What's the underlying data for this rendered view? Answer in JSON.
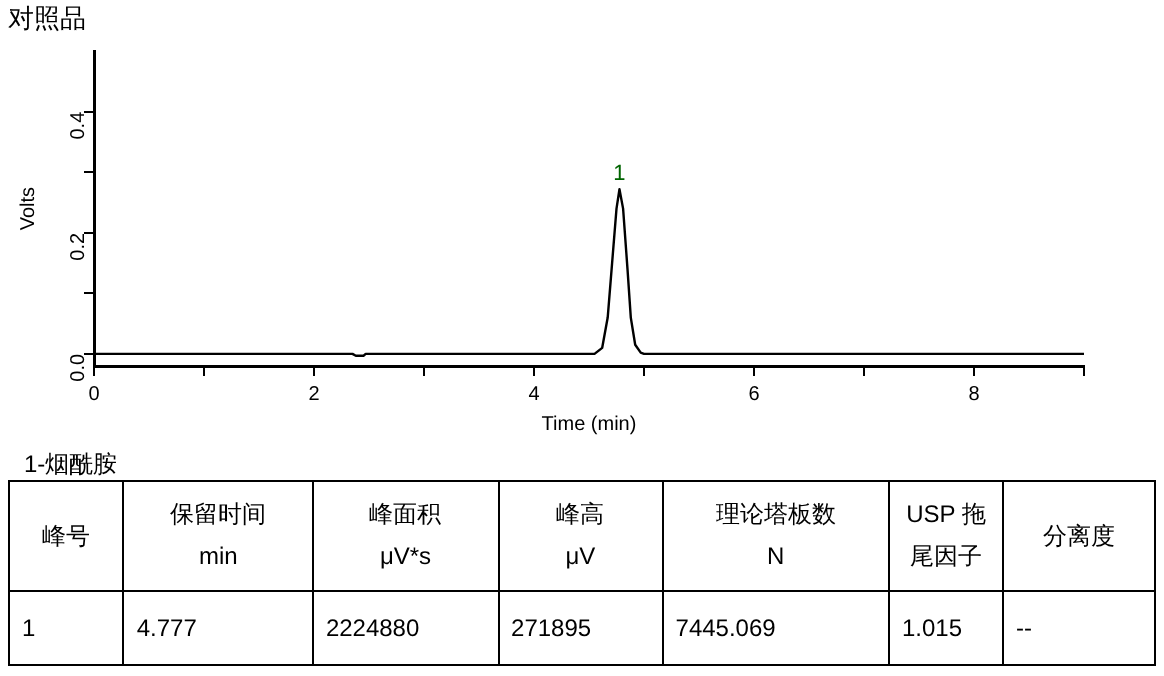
{
  "chart_data": {
    "type": "line",
    "title": "对照品",
    "xlabel": "Time (min)",
    "ylabel": "Volts",
    "x": [
      0,
      2.35,
      2.38,
      2.45,
      2.47,
      4.55,
      4.62,
      4.67,
      4.71,
      4.75,
      4.777,
      4.81,
      4.85,
      4.88,
      4.92,
      4.97,
      5.0,
      9
    ],
    "series": [
      {
        "color": "#000000",
        "values": [
          0,
          0,
          -0.003,
          -0.003,
          0,
          0,
          0.01,
          0.06,
          0.15,
          0.24,
          0.272,
          0.24,
          0.14,
          0.06,
          0.015,
          0.002,
          0,
          0
        ]
      }
    ],
    "xlim": [
      0,
      9
    ],
    "xticks": [
      0,
      {
        "value": 1,
        "label": null
      },
      2,
      {
        "value": 3,
        "label": null
      },
      4,
      {
        "value": 5,
        "label": null
      },
      6,
      {
        "value": 7,
        "label": null
      },
      8,
      {
        "value": 9,
        "label": null
      }
    ],
    "ylim": [
      -0.02,
      0.5
    ],
    "yticks": [
      {
        "value": 0,
        "label": "0.0"
      },
      {
        "value": 0.1,
        "label": null
      },
      {
        "value": 0.2,
        "label": "0.2"
      },
      {
        "value": 0.3,
        "label": null
      },
      {
        "value": 0.4,
        "label": "0.4"
      }
    ],
    "grid": false,
    "legend": false,
    "marker": "none",
    "line_style": "solid",
    "annotations": [
      {
        "text": "1",
        "x": 4.777,
        "y": 0.272
      },
      "1-烟酰胺",
      "峰号",
      "保留时间\nmin",
      "峰面积\nμV*s",
      "峰高\nμV",
      "理论塔板数\nN",
      "USP 拖尾因子",
      "分离度",
      "1",
      "4.777",
      "2224880",
      "271895",
      "7445.069",
      "1.015",
      "--"
    ]
  }
}
